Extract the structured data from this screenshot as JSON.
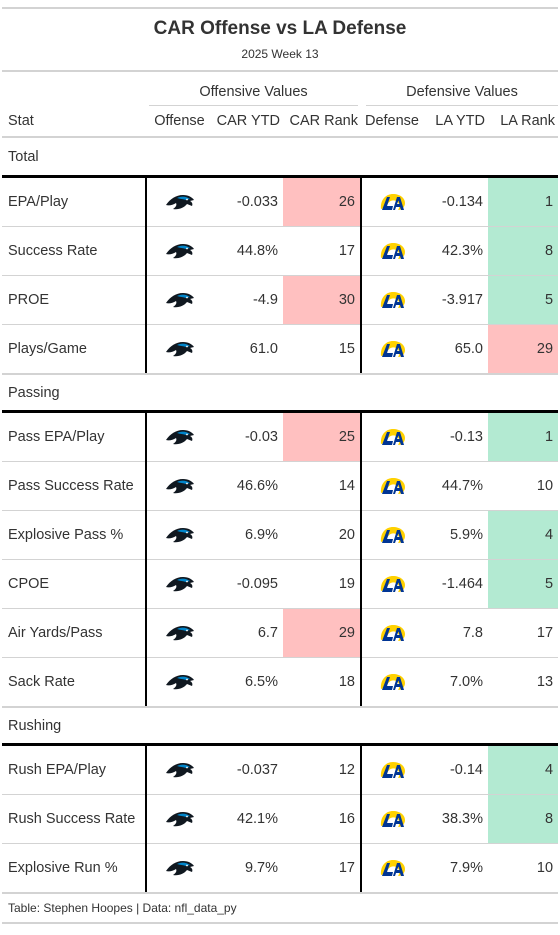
{
  "header": {
    "title": "CAR Offense vs LA Defense",
    "subtitle": "2025 Week 13"
  },
  "spanners": {
    "offense": "Offensive Values",
    "defense": "Defensive Values"
  },
  "columns": {
    "stat": "Stat",
    "offense": "Offense",
    "car_ytd": "CAR YTD",
    "car_rank": "CAR Rank",
    "defense": "Defense",
    "la_ytd": "LA YTD",
    "la_rank": "LA Rank"
  },
  "icons": {
    "offense_logo": "panthers-logo-icon",
    "defense_logo": "rams-logo-icon"
  },
  "colors": {
    "bad_rank": "#ffc0c0",
    "good_rank": "#b3ead2",
    "panthers_blue": "#0085ca",
    "rams_blue": "#003594",
    "rams_gold": "#ffd100"
  },
  "groups": [
    {
      "name": "Total",
      "rows": [
        {
          "stat": "EPA/Play",
          "car_ytd": "-0.033",
          "car_rank": "26",
          "car_hl": "red",
          "la_ytd": "-0.134",
          "la_rank": "1",
          "la_hl": "green"
        },
        {
          "stat": "Success Rate",
          "car_ytd": "44.8%",
          "car_rank": "17",
          "car_hl": "",
          "la_ytd": "42.3%",
          "la_rank": "8",
          "la_hl": "green"
        },
        {
          "stat": "PROE",
          "car_ytd": "-4.9",
          "car_rank": "30",
          "car_hl": "red",
          "la_ytd": "-3.917",
          "la_rank": "5",
          "la_hl": "green"
        },
        {
          "stat": "Plays/Game",
          "car_ytd": "61.0",
          "car_rank": "15",
          "car_hl": "",
          "la_ytd": "65.0",
          "la_rank": "29",
          "la_hl": "red"
        }
      ]
    },
    {
      "name": "Passing",
      "rows": [
        {
          "stat": "Pass EPA/Play",
          "car_ytd": "-0.03",
          "car_rank": "25",
          "car_hl": "red",
          "la_ytd": "-0.13",
          "la_rank": "1",
          "la_hl": "green"
        },
        {
          "stat": "Pass Success Rate",
          "car_ytd": "46.6%",
          "car_rank": "14",
          "car_hl": "",
          "la_ytd": "44.7%",
          "la_rank": "10",
          "la_hl": ""
        },
        {
          "stat": "Explosive Pass %",
          "car_ytd": "6.9%",
          "car_rank": "20",
          "car_hl": "",
          "la_ytd": "5.9%",
          "la_rank": "4",
          "la_hl": "green"
        },
        {
          "stat": "CPOE",
          "car_ytd": "-0.095",
          "car_rank": "19",
          "car_hl": "",
          "la_ytd": "-1.464",
          "la_rank": "5",
          "la_hl": "green"
        },
        {
          "stat": "Air Yards/Pass",
          "car_ytd": "6.7",
          "car_rank": "29",
          "car_hl": "red",
          "la_ytd": "7.8",
          "la_rank": "17",
          "la_hl": ""
        },
        {
          "stat": "Sack Rate",
          "car_ytd": "6.5%",
          "car_rank": "18",
          "car_hl": "",
          "la_ytd": "7.0%",
          "la_rank": "13",
          "la_hl": ""
        }
      ]
    },
    {
      "name": "Rushing",
      "rows": [
        {
          "stat": "Rush EPA/Play",
          "car_ytd": "-0.037",
          "car_rank": "12",
          "car_hl": "",
          "la_ytd": "-0.14",
          "la_rank": "4",
          "la_hl": "green"
        },
        {
          "stat": "Rush Success Rate",
          "car_ytd": "42.1%",
          "car_rank": "16",
          "car_hl": "",
          "la_ytd": "38.3%",
          "la_rank": "8",
          "la_hl": "green"
        },
        {
          "stat": "Explosive Run %",
          "car_ytd": "9.7%",
          "car_rank": "17",
          "car_hl": "",
          "la_ytd": "7.9%",
          "la_rank": "10",
          "la_hl": ""
        }
      ]
    }
  ],
  "footer": {
    "source": "Table: Stephen Hoopes | Data: nfl_data_py"
  }
}
